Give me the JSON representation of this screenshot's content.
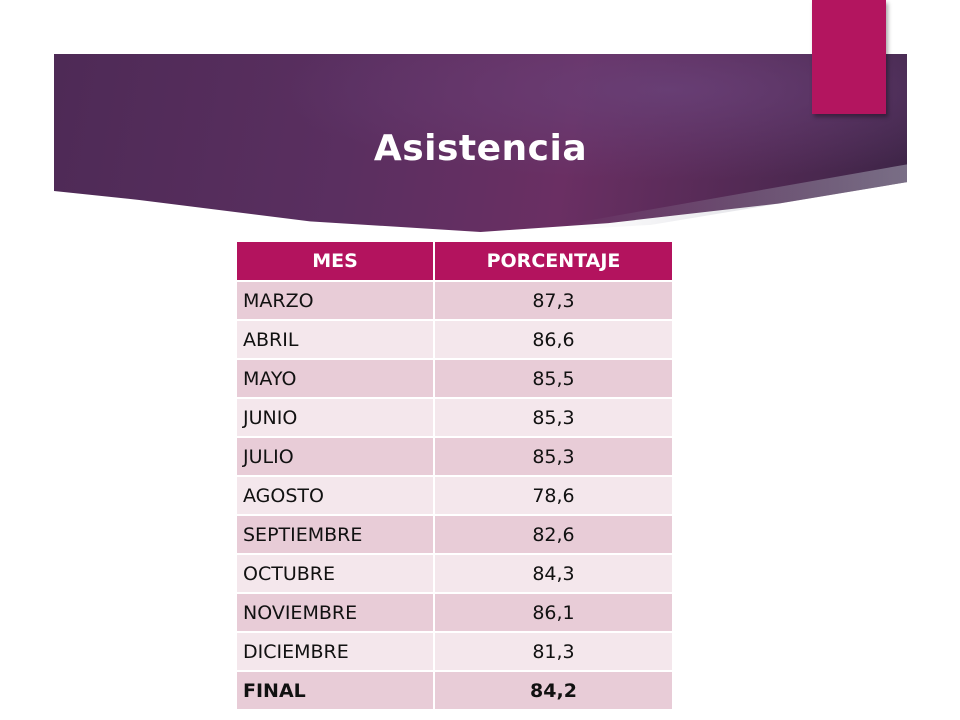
{
  "slide": {
    "title": "Asistencia",
    "accent_color": "#b3155f"
  },
  "table": {
    "headers": [
      "MES",
      "PORCENTAJE"
    ],
    "rows": [
      {
        "month": "MARZO",
        "value": "87,3"
      },
      {
        "month": "ABRIL",
        "value": "86,6"
      },
      {
        "month": "MAYO",
        "value": "85,5"
      },
      {
        "month": "JUNIO",
        "value": "85,3"
      },
      {
        "month": "JULIO",
        "value": "85,3"
      },
      {
        "month": "AGOSTO",
        "value": "78,6"
      },
      {
        "month": "SEPTIEMBRE",
        "value": "82,6"
      },
      {
        "month": "OCTUBRE",
        "value": "84,3"
      },
      {
        "month": "NOVIEMBRE",
        "value": "86,1"
      },
      {
        "month": "DICIEMBRE",
        "value": "81,3"
      },
      {
        "month": "FINAL",
        "value": "84,2"
      }
    ],
    "header_color": "#b3135e",
    "row_color_odd": "#e8ccd7",
    "row_color_even": "#f4e7ec"
  }
}
